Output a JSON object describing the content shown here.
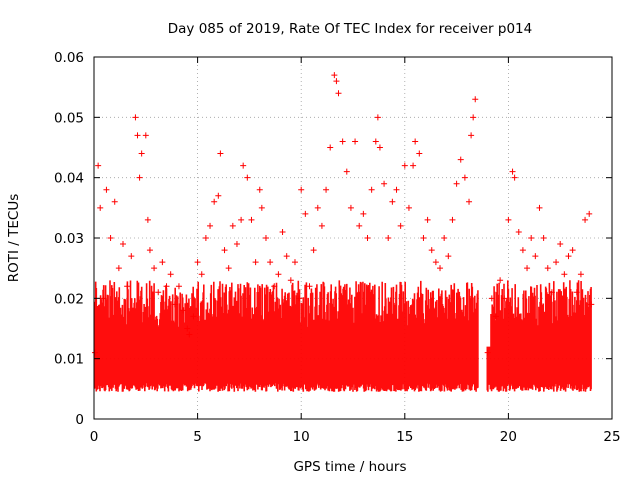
{
  "chart_data": {
    "type": "scatter",
    "title": "Day 085 of 2019, Rate Of TEC Index for receiver p014",
    "xlabel": "GPS time / hours",
    "ylabel": "ROTI / TECUs",
    "xlim": [
      0,
      25
    ],
    "ylim": [
      0,
      0.06
    ],
    "x_ticks": [
      0,
      5,
      10,
      15,
      20,
      25
    ],
    "x_tick_labels": [
      "0",
      "5",
      "10",
      "15",
      "20",
      "25"
    ],
    "y_ticks": [
      0,
      0.01,
      0.02,
      0.03,
      0.04,
      0.05,
      0.06
    ],
    "y_tick_labels": [
      "0",
      "0.01",
      "0.02",
      "0.03",
      "0.04",
      "0.05",
      "0.06"
    ],
    "grid": true,
    "marker": "plus",
    "series": [
      {
        "name": "ROTI p014",
        "color": "#ff0000",
        "x": [
          0.05,
          0.2,
          0.3,
          0.45,
          0.6,
          0.8,
          1.0,
          1.2,
          1.4,
          1.6,
          1.8,
          2.0,
          2.1,
          2.2,
          2.3,
          2.5,
          2.6,
          2.7,
          2.9,
          3.1,
          3.3,
          3.5,
          3.7,
          3.9,
          4.1,
          4.3,
          4.5,
          4.6,
          4.8,
          5.0,
          5.2,
          5.4,
          5.6,
          5.8,
          6.0,
          6.1,
          6.3,
          6.5,
          6.7,
          6.9,
          7.1,
          7.2,
          7.4,
          7.6,
          7.8,
          8.0,
          8.1,
          8.3,
          8.5,
          8.7,
          8.9,
          9.1,
          9.3,
          9.5,
          9.7,
          9.9,
          10.0,
          10.2,
          10.4,
          10.6,
          10.8,
          11.0,
          11.2,
          11.4,
          11.6,
          11.7,
          11.8,
          12.0,
          12.2,
          12.4,
          12.6,
          12.8,
          13.0,
          13.2,
          13.4,
          13.6,
          13.7,
          13.8,
          14.0,
          14.2,
          14.4,
          14.6,
          14.8,
          15.0,
          15.2,
          15.4,
          15.5,
          15.7,
          15.9,
          16.1,
          16.3,
          16.5,
          16.7,
          16.9,
          17.1,
          17.3,
          17.5,
          17.7,
          17.9,
          18.1,
          18.2,
          18.3,
          18.4,
          19.0,
          19.2,
          19.4,
          19.6,
          19.8,
          20.0,
          20.2,
          20.3,
          20.5,
          20.7,
          20.9,
          21.1,
          21.3,
          21.5,
          21.7,
          21.9,
          22.1,
          22.3,
          22.5,
          22.7,
          22.9,
          23.1,
          23.3,
          23.5,
          23.7,
          23.9,
          24.0
        ],
        "y": [
          0.011,
          0.042,
          0.035,
          0.02,
          0.038,
          0.03,
          0.036,
          0.025,
          0.029,
          0.022,
          0.027,
          0.05,
          0.047,
          0.04,
          0.044,
          0.047,
          0.033,
          0.028,
          0.025,
          0.021,
          0.026,
          0.022,
          0.024,
          0.019,
          0.022,
          0.018,
          0.015,
          0.014,
          0.017,
          0.026,
          0.024,
          0.03,
          0.032,
          0.036,
          0.037,
          0.044,
          0.028,
          0.025,
          0.032,
          0.029,
          0.033,
          0.042,
          0.04,
          0.033,
          0.026,
          0.038,
          0.035,
          0.03,
          0.026,
          0.022,
          0.024,
          0.031,
          0.027,
          0.023,
          0.026,
          0.02,
          0.038,
          0.034,
          0.022,
          0.028,
          0.035,
          0.032,
          0.038,
          0.045,
          0.057,
          0.056,
          0.054,
          0.046,
          0.041,
          0.035,
          0.046,
          0.032,
          0.034,
          0.03,
          0.038,
          0.046,
          0.05,
          0.045,
          0.039,
          0.03,
          0.036,
          0.038,
          0.032,
          0.042,
          0.035,
          0.042,
          0.046,
          0.044,
          0.03,
          0.033,
          0.028,
          0.026,
          0.025,
          0.03,
          0.027,
          0.033,
          0.039,
          0.043,
          0.04,
          0.036,
          0.047,
          0.05,
          0.053,
          0.011,
          0.02,
          0.017,
          0.023,
          0.02,
          0.033,
          0.041,
          0.04,
          0.031,
          0.028,
          0.025,
          0.03,
          0.027,
          0.035,
          0.03,
          0.025,
          0.021,
          0.026,
          0.029,
          0.024,
          0.027,
          0.028,
          0.021,
          0.024,
          0.033,
          0.034,
          0.019
        ]
      }
    ]
  }
}
